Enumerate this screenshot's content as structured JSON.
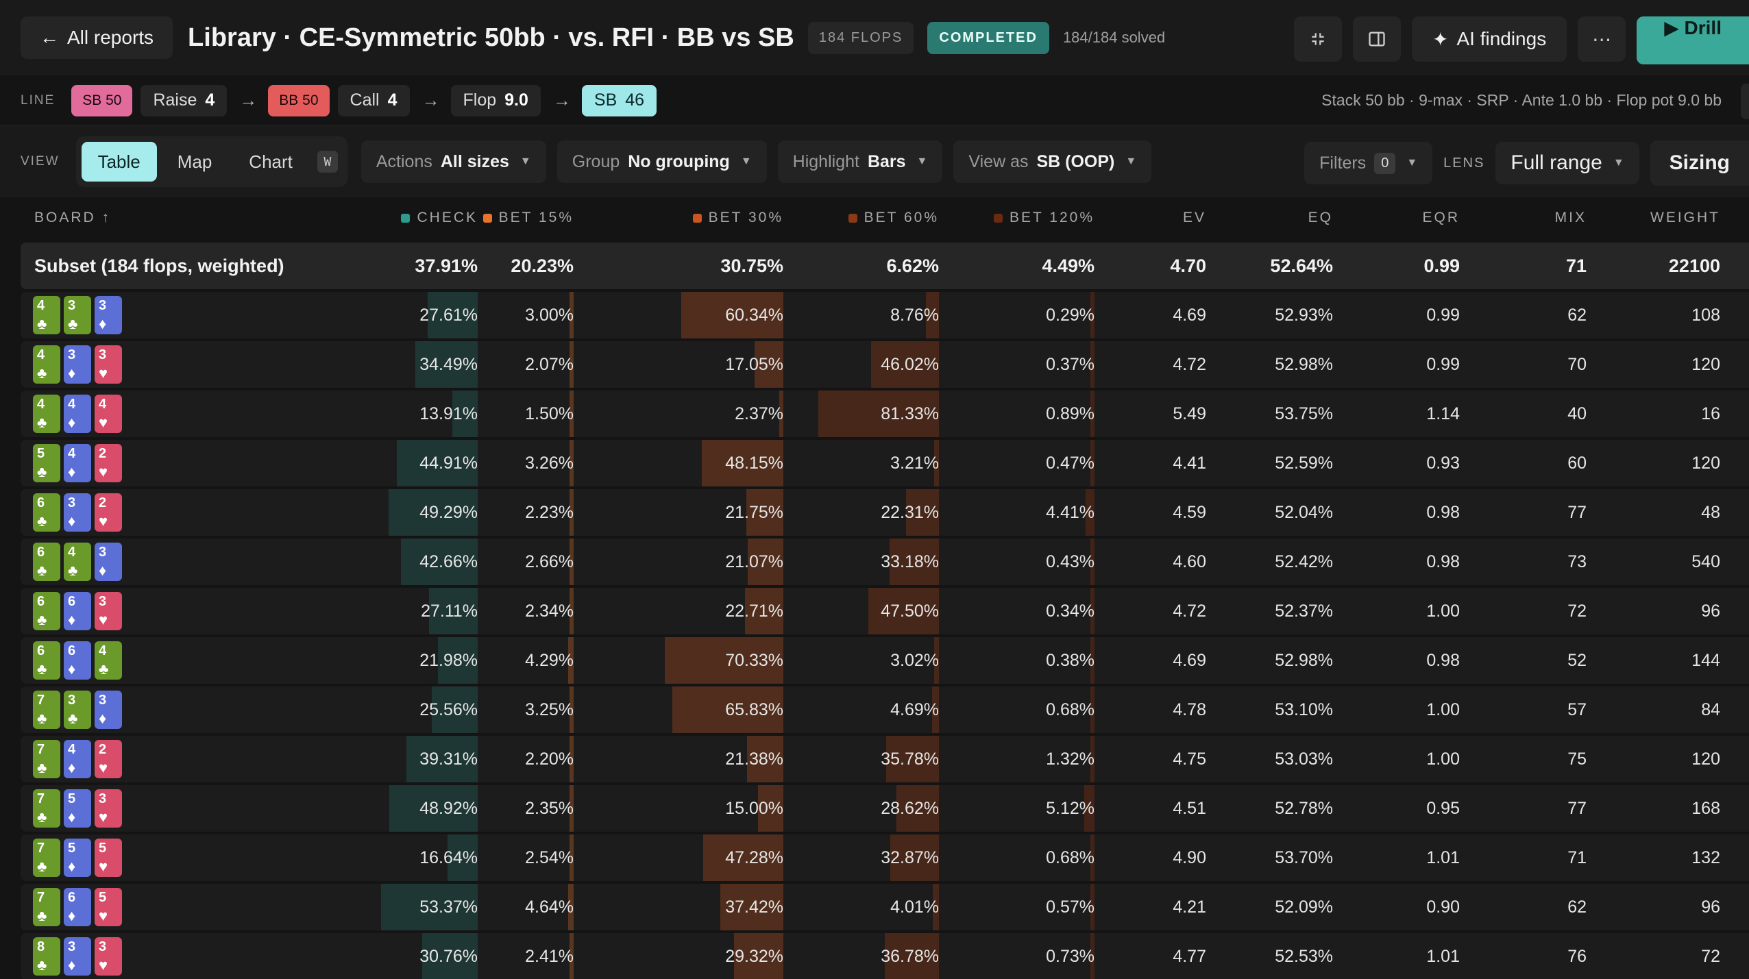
{
  "header": {
    "back_label": "All reports",
    "title": "Library · CE-Symmetric 50bb · vs. RFI · BB vs SB",
    "flops_badge": "184 FLOPS",
    "status": "COMPLETED",
    "solved": "184/184 solved",
    "ai_label": "AI findings",
    "drill_label": "Drill"
  },
  "line": {
    "label": "LINE",
    "chips": [
      {
        "text": "SB 50",
        "style": "pink"
      },
      {
        "text": "Raise",
        "value": "4"
      },
      {
        "text": "BB 50",
        "style": "red"
      },
      {
        "text": "Call",
        "value": "4"
      },
      {
        "text": "Flop",
        "value": "9.0"
      },
      {
        "text": "SB",
        "value": "46",
        "style": "cyan"
      }
    ],
    "info": "Stack 50 bb · 9-max · SRP · Ante 1.0 bb · Flop pot 9.0 bb"
  },
  "controls": {
    "view_label": "VIEW",
    "views": [
      "Table",
      "Map",
      "Chart"
    ],
    "shortcut": "W",
    "actions": {
      "label": "Actions",
      "value": "All sizes"
    },
    "group": {
      "label": "Group",
      "value": "No grouping"
    },
    "highlight": {
      "label": "Highlight",
      "value": "Bars"
    },
    "viewas": {
      "label": "View as",
      "value": "SB (OOP)"
    },
    "filters": {
      "label": "Filters",
      "count": "0"
    },
    "lens_label": "LENS",
    "lens_value": "Full range",
    "sizing_label": "Sizing"
  },
  "colors": {
    "check": "#2a9d8f",
    "bet15": "#e8732a",
    "bet30": "#c9561f",
    "bet60": "#8a3a17",
    "bet120": "#6a2a12"
  },
  "columns": [
    "BOARD ↑",
    "CHECK",
    "BET 15%",
    "BET 30%",
    "BET 60%",
    "BET 120%",
    "EV",
    "EQ",
    "EQR",
    "MIX",
    "WEIGHT"
  ],
  "subset": {
    "label": "Subset (184 flops, weighted)",
    "check": "37.91%",
    "b15": "20.23%",
    "b30": "30.75%",
    "b60": "6.62%",
    "b120": "4.49%",
    "ev": "4.70",
    "eq": "52.64%",
    "eqr": "0.99",
    "mix": "71",
    "weight": "22100"
  },
  "rows": [
    {
      "cards": [
        [
          "4",
          "c"
        ],
        [
          "3",
          "c"
        ],
        [
          "3",
          "d"
        ]
      ],
      "check": "27.61%",
      "b15": "3.00%",
      "b30": "60.34%",
      "b60": "8.76%",
      "b120": "0.29%",
      "ev": "4.69",
      "eq": "52.93%",
      "eqr": "0.99",
      "mix": "62",
      "weight": "108"
    },
    {
      "cards": [
        [
          "4",
          "c"
        ],
        [
          "3",
          "d"
        ],
        [
          "3",
          "h"
        ]
      ],
      "check": "34.49%",
      "b15": "2.07%",
      "b30": "17.05%",
      "b60": "46.02%",
      "b120": "0.37%",
      "ev": "4.72",
      "eq": "52.98%",
      "eqr": "0.99",
      "mix": "70",
      "weight": "120"
    },
    {
      "cards": [
        [
          "4",
          "c"
        ],
        [
          "4",
          "d"
        ],
        [
          "4",
          "h"
        ]
      ],
      "check": "13.91%",
      "b15": "1.50%",
      "b30": "2.37%",
      "b60": "81.33%",
      "b120": "0.89%",
      "ev": "5.49",
      "eq": "53.75%",
      "eqr": "1.14",
      "mix": "40",
      "weight": "16"
    },
    {
      "cards": [
        [
          "5",
          "c"
        ],
        [
          "4",
          "d"
        ],
        [
          "2",
          "h"
        ]
      ],
      "check": "44.91%",
      "b15": "3.26%",
      "b30": "48.15%",
      "b60": "3.21%",
      "b120": "0.47%",
      "ev": "4.41",
      "eq": "52.59%",
      "eqr": "0.93",
      "mix": "60",
      "weight": "120"
    },
    {
      "cards": [
        [
          "6",
          "c"
        ],
        [
          "3",
          "d"
        ],
        [
          "2",
          "h"
        ]
      ],
      "check": "49.29%",
      "b15": "2.23%",
      "b30": "21.75%",
      "b60": "22.31%",
      "b120": "4.41%",
      "ev": "4.59",
      "eq": "52.04%",
      "eqr": "0.98",
      "mix": "77",
      "weight": "48"
    },
    {
      "cards": [
        [
          "6",
          "c"
        ],
        [
          "4",
          "c"
        ],
        [
          "3",
          "d"
        ]
      ],
      "check": "42.66%",
      "b15": "2.66%",
      "b30": "21.07%",
      "b60": "33.18%",
      "b120": "0.43%",
      "ev": "4.60",
      "eq": "52.42%",
      "eqr": "0.98",
      "mix": "73",
      "weight": "540"
    },
    {
      "cards": [
        [
          "6",
          "c"
        ],
        [
          "6",
          "d"
        ],
        [
          "3",
          "h"
        ]
      ],
      "check": "27.11%",
      "b15": "2.34%",
      "b30": "22.71%",
      "b60": "47.50%",
      "b120": "0.34%",
      "ev": "4.72",
      "eq": "52.37%",
      "eqr": "1.00",
      "mix": "72",
      "weight": "96"
    },
    {
      "cards": [
        [
          "6",
          "c"
        ],
        [
          "6",
          "d"
        ],
        [
          "4",
          "c"
        ]
      ],
      "check": "21.98%",
      "b15": "4.29%",
      "b30": "70.33%",
      "b60": "3.02%",
      "b120": "0.38%",
      "ev": "4.69",
      "eq": "52.98%",
      "eqr": "0.98",
      "mix": "52",
      "weight": "144"
    },
    {
      "cards": [
        [
          "7",
          "c"
        ],
        [
          "3",
          "c"
        ],
        [
          "3",
          "d"
        ]
      ],
      "check": "25.56%",
      "b15": "3.25%",
      "b30": "65.83%",
      "b60": "4.69%",
      "b120": "0.68%",
      "ev": "4.78",
      "eq": "53.10%",
      "eqr": "1.00",
      "mix": "57",
      "weight": "84"
    },
    {
      "cards": [
        [
          "7",
          "c"
        ],
        [
          "4",
          "d"
        ],
        [
          "2",
          "h"
        ]
      ],
      "check": "39.31%",
      "b15": "2.20%",
      "b30": "21.38%",
      "b60": "35.78%",
      "b120": "1.32%",
      "ev": "4.75",
      "eq": "53.03%",
      "eqr": "1.00",
      "mix": "75",
      "weight": "120"
    },
    {
      "cards": [
        [
          "7",
          "c"
        ],
        [
          "5",
          "d"
        ],
        [
          "3",
          "h"
        ]
      ],
      "check": "48.92%",
      "b15": "2.35%",
      "b30": "15.00%",
      "b60": "28.62%",
      "b120": "5.12%",
      "ev": "4.51",
      "eq": "52.78%",
      "eqr": "0.95",
      "mix": "77",
      "weight": "168"
    },
    {
      "cards": [
        [
          "7",
          "c"
        ],
        [
          "5",
          "d"
        ],
        [
          "5",
          "h"
        ]
      ],
      "check": "16.64%",
      "b15": "2.54%",
      "b30": "47.28%",
      "b60": "32.87%",
      "b120": "0.68%",
      "ev": "4.90",
      "eq": "53.70%",
      "eqr": "1.01",
      "mix": "71",
      "weight": "132"
    },
    {
      "cards": [
        [
          "7",
          "c"
        ],
        [
          "6",
          "d"
        ],
        [
          "5",
          "h"
        ]
      ],
      "check": "53.37%",
      "b15": "4.64%",
      "b30": "37.42%",
      "b60": "4.01%",
      "b120": "0.57%",
      "ev": "4.21",
      "eq": "52.09%",
      "eqr": "0.90",
      "mix": "62",
      "weight": "96"
    },
    {
      "cards": [
        [
          "8",
          "c"
        ],
        [
          "3",
          "d"
        ],
        [
          "3",
          "h"
        ]
      ],
      "check": "30.76%",
      "b15": "2.41%",
      "b30": "29.32%",
      "b60": "36.78%",
      "b120": "0.73%",
      "ev": "4.77",
      "eq": "52.53%",
      "eqr": "1.01",
      "mix": "76",
      "weight": "72"
    }
  ]
}
